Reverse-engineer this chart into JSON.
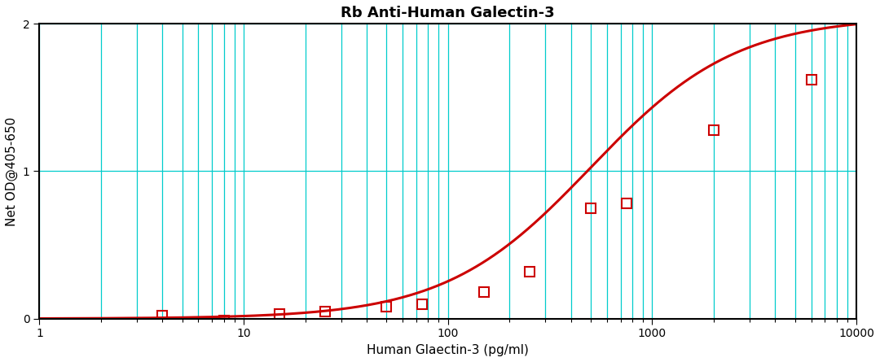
{
  "title": "Rb Anti-Human Galectin-3",
  "xlabel": "Human Glaectin-3 (pg/ml)",
  "ylabel": "Net OD@405-650",
  "xlim": [
    1,
    10000
  ],
  "ylim": [
    0,
    2.0
  ],
  "data_points_x": [
    4,
    8,
    15,
    25,
    50,
    75,
    150,
    250,
    500,
    750,
    2000,
    6000
  ],
  "data_points_y": [
    0.02,
    -0.01,
    0.03,
    0.05,
    0.08,
    0.1,
    0.18,
    0.32,
    0.75,
    0.78,
    1.28,
    1.62
  ],
  "curve_color": "#cc0000",
  "marker_color": "#cc0000",
  "grid_color": "#00cccc",
  "background_color": "#ffffff",
  "title_fontsize": 13,
  "label_fontsize": 11,
  "sigmoid_L": 2.05,
  "sigmoid_k": 2.8,
  "sigmoid_x0": 500
}
